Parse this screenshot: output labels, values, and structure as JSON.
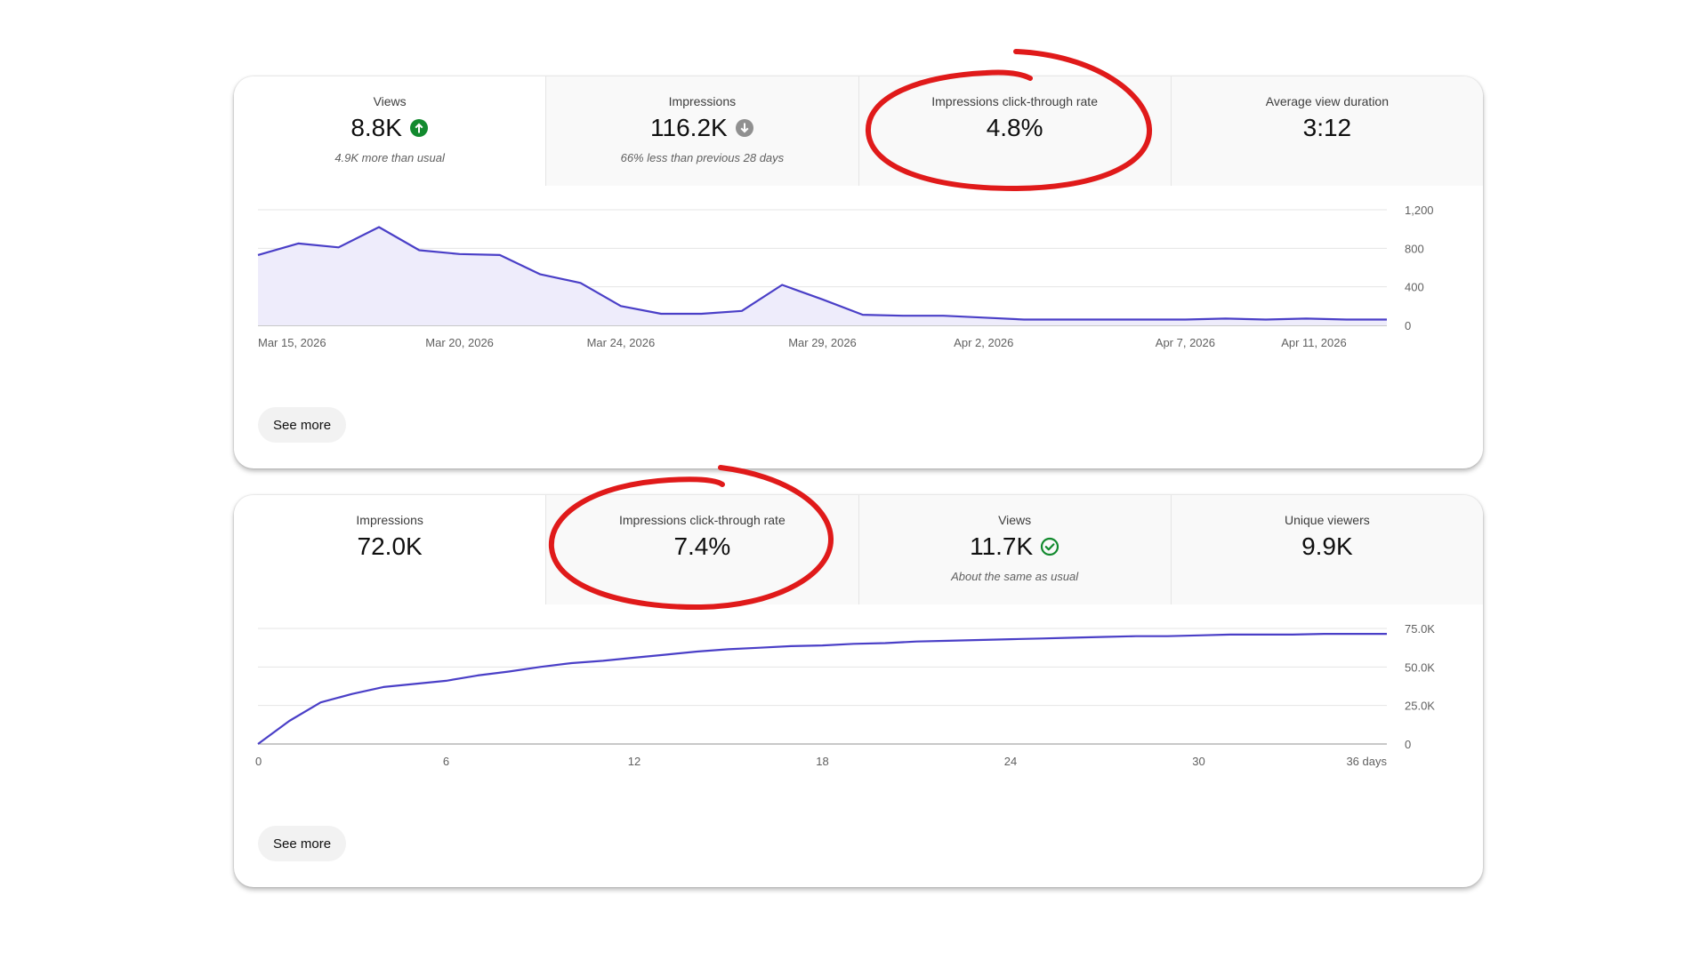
{
  "card1": {
    "tabs": [
      {
        "label": "Views",
        "value": "8.8K",
        "icon": "arrow-up-circle-icon",
        "note": "4.9K more than usual"
      },
      {
        "label": "Impressions",
        "value": "116.2K",
        "icon": "arrow-down-circle-icon",
        "note": "66% less than previous 28 days"
      },
      {
        "label": "Impressions click-through rate",
        "value": "4.8%"
      },
      {
        "label": "Average view duration",
        "value": "3:12"
      }
    ],
    "see_more_label": "See more"
  },
  "card2": {
    "tabs": [
      {
        "label": "Impressions",
        "value": "72.0K"
      },
      {
        "label": "Impressions click-through rate",
        "value": "7.4%"
      },
      {
        "label": "Views",
        "value": "11.7K",
        "icon": "check-circle-icon",
        "note": "About the same as usual"
      },
      {
        "label": "Unique viewers",
        "value": "9.9K"
      }
    ],
    "see_more_label": "See more"
  },
  "colors": {
    "line": "#4a3fc7",
    "area_fill": "#eeecfb",
    "up_green": "#128a2e",
    "down_gray": "#909090",
    "check_green": "#128a2e",
    "annotation_red": "#e01a1a"
  },
  "chart_data": [
    {
      "type": "area",
      "x_tick_labels": [
        "Mar 15, 2026",
        "Mar 20, 2026",
        "Mar 24, 2026",
        "Mar 29, 2026",
        "Apr 2, 2026",
        "Apr 7, 2026",
        "Apr 11, 2026"
      ],
      "x_tick_index": [
        0,
        5,
        9,
        14,
        18,
        23,
        27
      ],
      "y_ticks": [
        0,
        400,
        800,
        1200
      ],
      "y_tick_labels": [
        "0",
        "400",
        "800",
        "1,200"
      ],
      "ylim": [
        0,
        1200
      ],
      "grid": true,
      "series": [
        {
          "values": [
            730,
            850,
            810,
            1020,
            780,
            740,
            730,
            530,
            440,
            200,
            120,
            120,
            150,
            420,
            270,
            110,
            100,
            100,
            80,
            60,
            60,
            60,
            60,
            60,
            70,
            60,
            70,
            60,
            60
          ]
        }
      ]
    },
    {
      "type": "line",
      "x_tick_labels": [
        "0",
        "6",
        "12",
        "18",
        "24",
        "30",
        "36 days"
      ],
      "x_tick_values": [
        0,
        6,
        12,
        18,
        24,
        30,
        36
      ],
      "xlim": [
        0,
        36
      ],
      "y_ticks": [
        0,
        25000,
        50000,
        75000
      ],
      "y_tick_labels": [
        "0",
        "25.0K",
        "50.0K",
        "75.0K"
      ],
      "ylim": [
        0,
        75000
      ],
      "grid": true,
      "series": [
        {
          "x": [
            0,
            1,
            2,
            3,
            4,
            5,
            6,
            7,
            8,
            9,
            10,
            11,
            12,
            13,
            14,
            15,
            16,
            17,
            18,
            19,
            20,
            21,
            22,
            23,
            24,
            25,
            26,
            27,
            28,
            29,
            30,
            31,
            32,
            33,
            34,
            35,
            36
          ],
          "values": [
            0,
            15000,
            27000,
            32500,
            37000,
            39000,
            41000,
            44500,
            47000,
            50000,
            52500,
            54000,
            56000,
            58000,
            60000,
            61500,
            62500,
            63500,
            64000,
            65000,
            65500,
            66500,
            67000,
            67500,
            68000,
            68500,
            69000,
            69500,
            70000,
            70000,
            70500,
            71000,
            71000,
            71000,
            71500,
            71500,
            71500
          ]
        }
      ]
    }
  ]
}
